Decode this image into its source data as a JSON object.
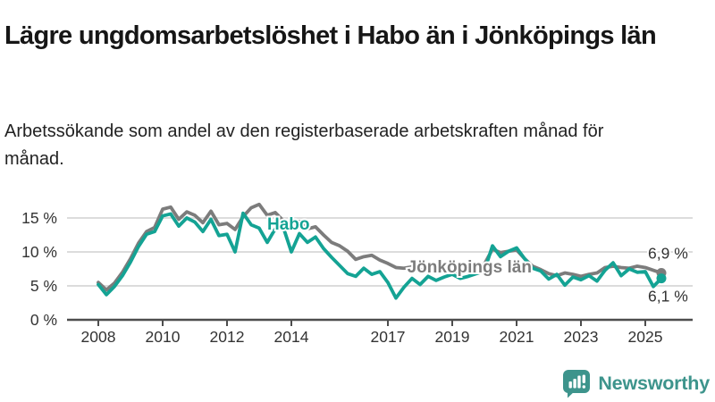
{
  "header": {
    "title": "Lägre ungdomsarbetslöshet i Habo än i Jönköpings län",
    "subtitle": "Arbetssökande som andel av den registerbaserade arbetskraften månad för månad."
  },
  "chart_data": {
    "type": "line",
    "title": "Lägre ungdomsarbetslöshet i Habo än i Jönköpings län",
    "subtitle": "Arbetssökande som andel av den registerbaserade arbetskraften månad för månad.",
    "unit": "%",
    "grid": true,
    "x_start": 2008,
    "x_step": 0.25,
    "xlim": [
      2007.1,
      2026.5
    ],
    "ylim": [
      0,
      17.5
    ],
    "x_ticks": [
      2008,
      2010,
      2012,
      2014,
      2017,
      2019,
      2021,
      2023,
      2025
    ],
    "y_ticks": [
      {
        "value": 0,
        "label": "0 %"
      },
      {
        "value": 5,
        "label": "5 %"
      },
      {
        "value": 10,
        "label": "10 %"
      },
      {
        "value": 15,
        "label": "15 %"
      }
    ],
    "series": [
      {
        "name": "Habo",
        "color": "#14a394",
        "end_label": "6,1 %",
        "values": [
          5.2,
          3.7,
          4.9,
          6.5,
          8.5,
          10.8,
          12.6,
          13.0,
          15.3,
          15.6,
          13.8,
          15.0,
          14.4,
          13.0,
          14.8,
          12.4,
          12.6,
          10.0,
          15.7,
          14.0,
          13.5,
          11.4,
          13.4,
          13.6,
          10.0,
          12.7,
          11.4,
          12.2,
          10.5,
          9.2,
          8.0,
          6.8,
          6.4,
          7.6,
          6.7,
          7.1,
          5.5,
          3.2,
          4.8,
          6.1,
          5.2,
          6.4,
          5.8,
          6.3,
          6.7,
          6.1,
          6.4,
          6.8,
          7.2,
          10.9,
          9.3,
          10.1,
          10.6,
          9.0,
          7.6,
          7.2,
          6.0,
          6.7,
          5.1,
          6.3,
          5.9,
          6.5,
          5.7,
          7.3,
          8.4,
          6.5,
          7.5,
          7.0,
          7.1,
          4.9,
          6.1
        ]
      },
      {
        "name": "Jönköpings län",
        "color": "#7c7c7c",
        "end_label": "6,9 %",
        "values": [
          5.5,
          4.4,
          5.4,
          7.0,
          9.0,
          11.3,
          13.0,
          13.6,
          16.3,
          16.6,
          14.8,
          15.9,
          15.4,
          14.3,
          16.0,
          14.0,
          14.2,
          13.3,
          15.2,
          16.5,
          17.0,
          15.4,
          15.8,
          14.6,
          13.6,
          14.5,
          13.4,
          13.7,
          12.5,
          11.4,
          10.9,
          10.1,
          8.9,
          9.3,
          9.5,
          8.8,
          8.3,
          7.7,
          7.6,
          7.8,
          7.3,
          7.5,
          7.1,
          7.3,
          7.0,
          7.2,
          7.4,
          7.7,
          8.2,
          10.4,
          9.9,
          10.1,
          10.3,
          9.0,
          7.9,
          7.4,
          6.8,
          6.5,
          6.9,
          6.7,
          6.4,
          6.7,
          6.9,
          7.7,
          7.9,
          7.7,
          7.6,
          7.9,
          7.7,
          7.3,
          6.9
        ]
      }
    ],
    "annotations": [
      {
        "text": "Habo",
        "t": 2013.25,
        "v": 13.3,
        "color": "#14a394"
      },
      {
        "text": "Jönköpings län",
        "t": 2017.6,
        "v": 7.0,
        "color": "#7c7c7c"
      }
    ],
    "legend_position": "inline-labels"
  },
  "footer": {
    "brand": "Newsworthy",
    "brand_color": "#3d948c"
  },
  "colors": {
    "habo_line": "#14a394",
    "county_line": "#7c7c7c",
    "gridline": "#dcdcdc",
    "axis": "#4d4d4d",
    "tick_text": "#333333"
  }
}
